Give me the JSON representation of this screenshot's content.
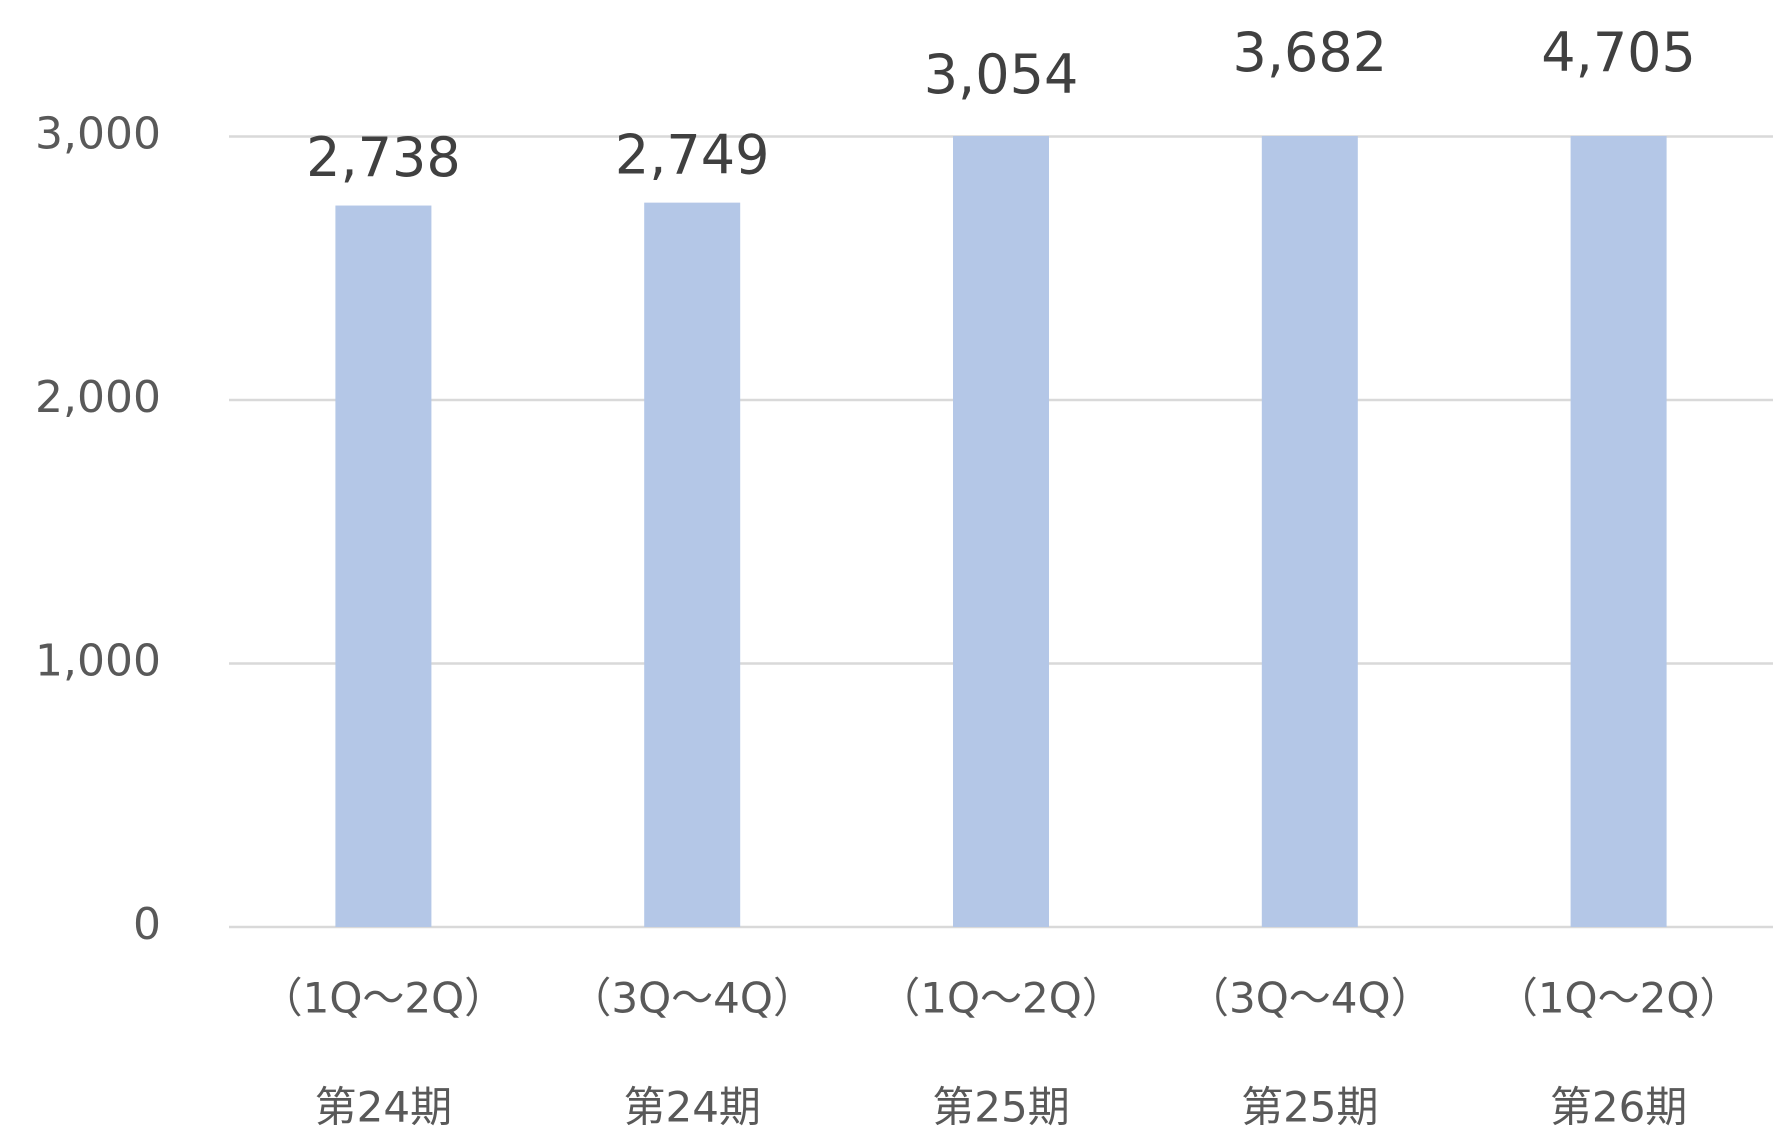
{
  "chart_data": {
    "type": "bar",
    "categories": [
      [
        "（1Q～2Q）",
        "第24期"
      ],
      [
        "（3Q～4Q）",
        "第24期"
      ],
      [
        "（1Q～2Q）",
        "第25期"
      ],
      [
        "（3Q～4Q）",
        "第25期"
      ],
      [
        "（1Q～2Q）",
        "第26期"
      ]
    ],
    "values": [
      2738,
      2749,
      3054,
      3682,
      4705
    ],
    "value_labels": [
      "2,738",
      "2,749",
      "3,054",
      "3,682",
      "4,705"
    ],
    "color": "#b4c7e7",
    "ylim": [
      0,
      3000
    ],
    "yticks": [
      {
        "value": 0,
        "label": "0"
      },
      {
        "value": 1000,
        "label": "1,000"
      },
      {
        "value": 2000,
        "label": "2,000"
      },
      {
        "value": 3000,
        "label": "3,000"
      }
    ],
    "grid": true
  }
}
